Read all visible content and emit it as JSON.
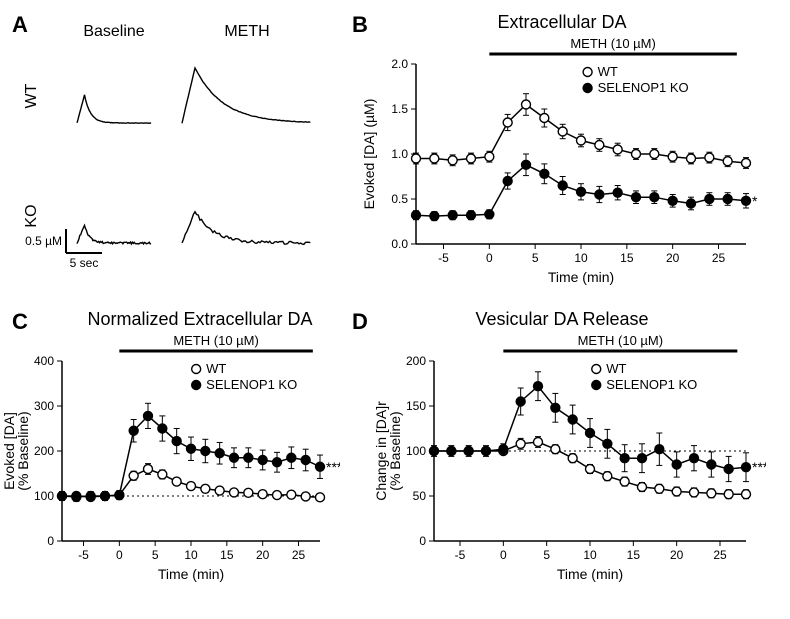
{
  "panelA": {
    "letter": "A",
    "col_labels": [
      "Baseline",
      "METH"
    ],
    "row_labels": [
      "WT",
      "KO"
    ],
    "scale_v_label": "0.5 µM",
    "scale_h_label": "5 sec",
    "trace_color": "#000000",
    "traces": {
      "baseline": {
        "WT": {
          "peak": 28,
          "tau": 6,
          "noise": 0.5
        },
        "KO": {
          "peak": 18,
          "tau": 5,
          "noise": 2.0
        }
      },
      "meth": {
        "WT": {
          "peak": 55,
          "tau": 28,
          "noise": 0.6
        },
        "KO": {
          "peak": 32,
          "tau": 18,
          "noise": 3.0
        }
      }
    }
  },
  "panelB": {
    "letter": "B",
    "title": "Extracellular DA",
    "treat_bar": "METH (10 µM)",
    "treat_bar_from": 0,
    "treat_bar_to": 27,
    "xlabel": "Time (min)",
    "ylabel": "Evoked [DA] (µM)",
    "xlim": [
      -8,
      28
    ],
    "xtick_step": 5,
    "xtick_start": -5,
    "ylim": [
      0,
      2.0
    ],
    "ytick_step": 0.5,
    "legend": [
      {
        "label": "WT",
        "marker": "open"
      },
      {
        "label": "SELENOP1 KO",
        "marker": "filled"
      }
    ],
    "sig": "*",
    "line_color": "#000000",
    "marker_size": 4.5,
    "series": {
      "x": [
        -8,
        -6,
        -4,
        -2,
        0,
        2,
        4,
        6,
        8,
        10,
        12,
        14,
        16,
        18,
        20,
        22,
        24,
        26,
        28
      ],
      "WT": {
        "y": [
          0.95,
          0.95,
          0.93,
          0.95,
          0.97,
          1.35,
          1.55,
          1.4,
          1.25,
          1.15,
          1.1,
          1.05,
          1.0,
          1.0,
          0.97,
          0.95,
          0.96,
          0.92,
          0.9
        ],
        "err": [
          0.06,
          0.06,
          0.06,
          0.06,
          0.06,
          0.09,
          0.12,
          0.1,
          0.08,
          0.07,
          0.07,
          0.07,
          0.06,
          0.06,
          0.06,
          0.06,
          0.06,
          0.06,
          0.06
        ]
      },
      "KO": {
        "y": [
          0.32,
          0.31,
          0.32,
          0.32,
          0.33,
          0.7,
          0.88,
          0.78,
          0.65,
          0.58,
          0.55,
          0.57,
          0.52,
          0.52,
          0.48,
          0.45,
          0.5,
          0.5,
          0.48
        ],
        "err": [
          0.05,
          0.05,
          0.05,
          0.05,
          0.05,
          0.09,
          0.12,
          0.11,
          0.1,
          0.09,
          0.09,
          0.08,
          0.07,
          0.07,
          0.07,
          0.07,
          0.07,
          0.07,
          0.08
        ]
      }
    }
  },
  "panelC": {
    "letter": "C",
    "title": "Normalized Extracellular DA",
    "treat_bar": "METH (10 µM)",
    "treat_bar_from": 0,
    "treat_bar_to": 27,
    "xlabel": "Time (min)",
    "ylabel": "Evoked [DA]\n(% Baseline)",
    "xlim": [
      -8,
      28
    ],
    "xtick_step": 5,
    "xtick_start": -5,
    "ylim": [
      0,
      400
    ],
    "ytick_step": 100,
    "baseline_ref": 100,
    "legend": [
      {
        "label": "WT",
        "marker": "open"
      },
      {
        "label": "SELENOP1 KO",
        "marker": "filled"
      }
    ],
    "sig": "***",
    "line_color": "#000000",
    "marker_size": 4.5,
    "series": {
      "x": [
        -8,
        -6,
        -4,
        -2,
        0,
        2,
        4,
        6,
        8,
        10,
        12,
        14,
        16,
        18,
        20,
        22,
        24,
        26,
        28
      ],
      "WT": {
        "y": [
          100,
          100,
          98,
          100,
          102,
          145,
          160,
          148,
          132,
          122,
          116,
          112,
          108,
          107,
          104,
          102,
          103,
          99,
          97
        ],
        "err": [
          6,
          6,
          6,
          6,
          6,
          10,
          12,
          10,
          8,
          8,
          8,
          8,
          7,
          7,
          7,
          7,
          7,
          7,
          7
        ]
      },
      "KO": {
        "y": [
          100,
          98,
          100,
          100,
          102,
          245,
          278,
          250,
          222,
          205,
          200,
          195,
          185,
          185,
          180,
          175,
          185,
          180,
          165
        ],
        "err": [
          10,
          10,
          10,
          10,
          10,
          25,
          28,
          28,
          28,
          26,
          26,
          24,
          22,
          22,
          22,
          22,
          24,
          24,
          26
        ]
      }
    }
  },
  "panelD": {
    "letter": "D",
    "title": "Vesicular DA Release",
    "treat_bar": "METH (10 µM)",
    "treat_bar_from": 0,
    "treat_bar_to": 27,
    "xlabel": "Time (min)",
    "ylabel": "Change in [DA]r\n(% Baseline)",
    "xlim": [
      -8,
      28
    ],
    "xtick_step": 5,
    "xtick_start": -5,
    "ylim": [
      0,
      200
    ],
    "ytick_step": 50,
    "baseline_ref": 100,
    "legend": [
      {
        "label": "WT",
        "marker": "open"
      },
      {
        "label": "SELENOP1 KO",
        "marker": "filled"
      }
    ],
    "sig": "***",
    "line_color": "#000000",
    "marker_size": 4.5,
    "series": {
      "x": [
        -8,
        -6,
        -4,
        -2,
        0,
        2,
        4,
        6,
        8,
        10,
        12,
        14,
        16,
        18,
        20,
        22,
        24,
        26,
        28
      ],
      "WT": {
        "y": [
          100,
          100,
          100,
          100,
          100,
          108,
          110,
          102,
          92,
          80,
          72,
          66,
          60,
          58,
          55,
          54,
          53,
          52,
          52
        ],
        "err": [
          4,
          4,
          4,
          4,
          4,
          6,
          6,
          5,
          5,
          5,
          5,
          5,
          5,
          5,
          5,
          5,
          5,
          5,
          5
        ]
      },
      "KO": {
        "y": [
          100,
          100,
          100,
          100,
          102,
          155,
          172,
          148,
          135,
          120,
          108,
          92,
          92,
          102,
          85,
          92,
          85,
          80,
          82
        ],
        "err": [
          6,
          6,
          6,
          6,
          6,
          15,
          16,
          16,
          16,
          16,
          16,
          15,
          16,
          18,
          14,
          14,
          14,
          14,
          16
        ]
      }
    }
  }
}
